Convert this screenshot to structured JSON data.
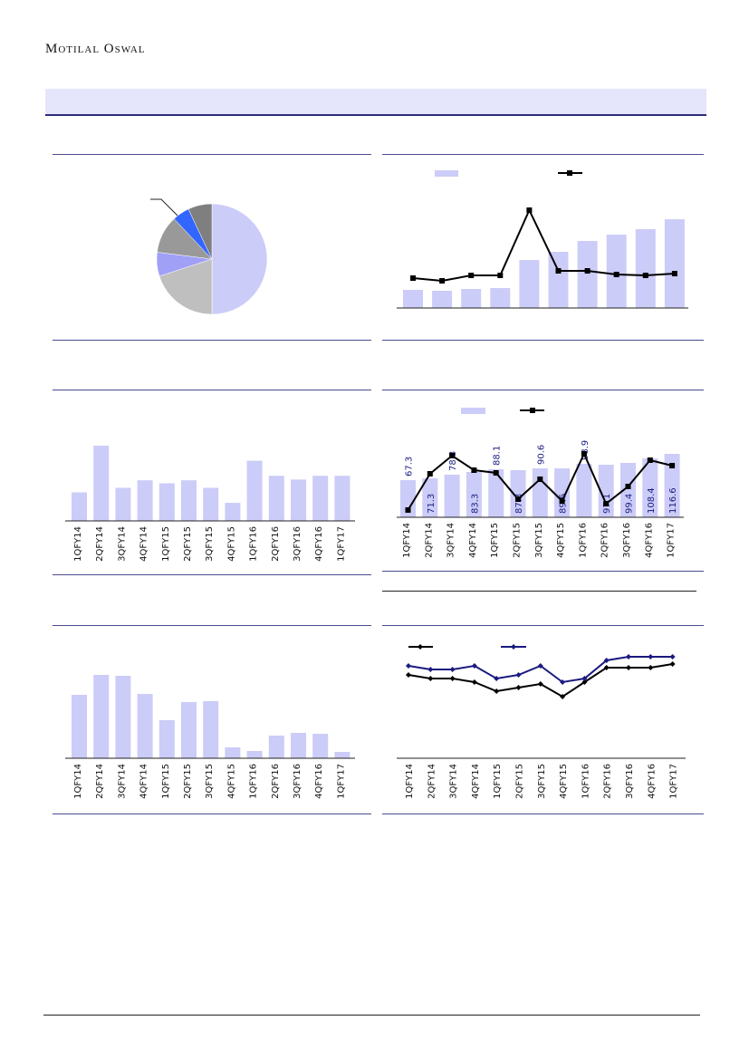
{
  "header": {
    "brand": "Motilal Oswal"
  },
  "colors": {
    "bar": "#ccccf8",
    "line": "#000000",
    "line2": "#1a1a80",
    "label": "#1a1a80",
    "rule": "#4b4b8f"
  },
  "chart_data": [
    {
      "type": "pie",
      "values": [
        50,
        20,
        7,
        11,
        5,
        7
      ],
      "colors": [
        "#ccccf8",
        "#bfbfbf",
        "#a0a0f7",
        "#999999",
        "#3366ff",
        "#7f7f7f"
      ]
    },
    {
      "type": "bar",
      "series": [
        {
          "values": [
            20,
            19,
            21,
            22,
            53,
            62,
            74,
            81,
            87,
            98
          ]
        },
        {
          "values": [
            33,
            30,
            36,
            36,
            108,
            41,
            41,
            37,
            36,
            38
          ]
        }
      ]
    },
    {
      "type": "bar",
      "categories": [
        "1QFY14",
        "2QFY14",
        "3QFY14",
        "4QFY14",
        "1QFY15",
        "2QFY15",
        "3QFY15",
        "4QFY15",
        "1QFY16",
        "2QFY16",
        "3QFY16",
        "4QFY16",
        "1QFY17"
      ],
      "values": [
        38,
        100,
        44,
        54,
        50,
        54,
        44,
        24,
        80,
        60,
        55,
        60,
        60
      ]
    },
    {
      "type": "bar",
      "categories": [
        "1QFY14",
        "2QFY14",
        "3QFY14",
        "4QFY14",
        "1QFY15",
        "2QFY15",
        "3QFY15",
        "4QFY15",
        "1QFY16",
        "2QFY16",
        "3QFY16",
        "4QFY16",
        "1QFY17"
      ],
      "series": [
        {
          "values": [
            67.3,
            71.3,
            78.3,
            83.3,
            88.1,
            87.3,
            90.6,
            89.6,
            98.9,
            97.1,
            99.4,
            108.4,
            116.6
          ]
        },
        {
          "values": [
            8,
            48,
            68,
            52,
            49,
            20,
            42,
            18,
            70,
            15,
            34,
            63,
            57
          ]
        }
      ]
    },
    {
      "type": "bar",
      "categories": [
        "1QFY14",
        "2QFY14",
        "3QFY14",
        "4QFY14",
        "1QFY15",
        "2QFY15",
        "3QFY15",
        "4QFY15",
        "1QFY16",
        "2QFY16",
        "3QFY16",
        "4QFY16",
        "1QFY17"
      ],
      "values": [
        70,
        92,
        91,
        71,
        42,
        62,
        63,
        12,
        8,
        25,
        28,
        27,
        7
      ]
    },
    {
      "type": "line",
      "categories": [
        "1QFY14",
        "2QFY14",
        "3QFY14",
        "4QFY14",
        "1QFY15",
        "2QFY15",
        "3QFY15",
        "4QFY15",
        "1QFY16",
        "2QFY16",
        "3QFY16",
        "4QFY16",
        "1QFY17"
      ],
      "series": [
        {
          "values": [
            5.2,
            4.8,
            4.8,
            4.4,
            3.4,
            3.8,
            4.2,
            2.8,
            4.4,
            6.0,
            6.0,
            6.0,
            6.4
          ]
        },
        {
          "values": [
            6.2,
            5.8,
            5.8,
            6.2,
            4.8,
            5.2,
            6.2,
            4.4,
            4.8,
            6.8,
            7.2,
            7.2,
            7.2
          ]
        }
      ]
    }
  ]
}
